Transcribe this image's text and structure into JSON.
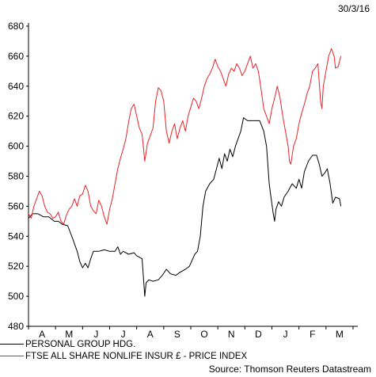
{
  "date_label": "30/3/16",
  "source": "Source: Thomson Reuters Datastream",
  "chart_data": {
    "type": "line",
    "title": "",
    "xlabel": "",
    "ylabel": "",
    "ylim": [
      480,
      680
    ],
    "yticks": [
      480,
      500,
      520,
      540,
      560,
      580,
      600,
      620,
      640,
      660,
      680
    ],
    "x_months": [
      "A",
      "M",
      "J",
      "J",
      "A",
      "S",
      "O",
      "N",
      "D",
      "J",
      "F",
      "M"
    ],
    "grid": false,
    "legend_position": "bottom-left",
    "series": [
      {
        "name": "PERSONAL GROUP HDG.",
        "color": "#000000",
        "points": [
          [
            0.0,
            552
          ],
          [
            0.15,
            555
          ],
          [
            0.35,
            555
          ],
          [
            0.55,
            553
          ],
          [
            0.75,
            553
          ],
          [
            0.95,
            550
          ],
          [
            1.1,
            550
          ],
          [
            1.25,
            548
          ],
          [
            1.45,
            547
          ],
          [
            1.6,
            540
          ],
          [
            1.7,
            535
          ],
          [
            1.8,
            530
          ],
          [
            1.9,
            523
          ],
          [
            2.0,
            519
          ],
          [
            2.1,
            522
          ],
          [
            2.2,
            519
          ],
          [
            2.3,
            525
          ],
          [
            2.4,
            530
          ],
          [
            2.6,
            530
          ],
          [
            2.8,
            531
          ],
          [
            3.0,
            530
          ],
          [
            3.2,
            530
          ],
          [
            3.3,
            533
          ],
          [
            3.4,
            528
          ],
          [
            3.5,
            530
          ],
          [
            3.7,
            528
          ],
          [
            3.9,
            529
          ],
          [
            4.0,
            527
          ],
          [
            4.1,
            526
          ],
          [
            4.2,
            525
          ],
          [
            4.3,
            500
          ],
          [
            4.35,
            509
          ],
          [
            4.45,
            511
          ],
          [
            4.6,
            510
          ],
          [
            4.8,
            511
          ],
          [
            4.95,
            514
          ],
          [
            5.1,
            518
          ],
          [
            5.25,
            515
          ],
          [
            5.45,
            514
          ],
          [
            5.6,
            516
          ],
          [
            5.8,
            518
          ],
          [
            5.95,
            520
          ],
          [
            6.05,
            524
          ],
          [
            6.15,
            528
          ],
          [
            6.25,
            530
          ],
          [
            6.35,
            540
          ],
          [
            6.45,
            560
          ],
          [
            6.55,
            570
          ],
          [
            6.7,
            575
          ],
          [
            6.85,
            578
          ],
          [
            6.95,
            585
          ],
          [
            7.05,
            592
          ],
          [
            7.15,
            585
          ],
          [
            7.25,
            595
          ],
          [
            7.35,
            590
          ],
          [
            7.45,
            598
          ],
          [
            7.55,
            593
          ],
          [
            7.65,
            600
          ],
          [
            7.75,
            605
          ],
          [
            7.85,
            610
          ],
          [
            7.95,
            619
          ],
          [
            8.1,
            617
          ],
          [
            8.3,
            617
          ],
          [
            8.55,
            617
          ],
          [
            8.7,
            610
          ],
          [
            8.8,
            600
          ],
          [
            8.9,
            575
          ],
          [
            8.95,
            568
          ],
          [
            9.05,
            555
          ],
          [
            9.1,
            550
          ],
          [
            9.15,
            558
          ],
          [
            9.25,
            563
          ],
          [
            9.35,
            560
          ],
          [
            9.45,
            566
          ],
          [
            9.6,
            570
          ],
          [
            9.75,
            575
          ],
          [
            9.9,
            572
          ],
          [
            10.0,
            578
          ],
          [
            10.1,
            572
          ],
          [
            10.2,
            583
          ],
          [
            10.35,
            590
          ],
          [
            10.5,
            594
          ],
          [
            10.65,
            594
          ],
          [
            10.75,
            588
          ],
          [
            10.85,
            580
          ],
          [
            10.95,
            582
          ],
          [
            11.05,
            585
          ],
          [
            11.15,
            575
          ],
          [
            11.25,
            562
          ],
          [
            11.35,
            566
          ],
          [
            11.5,
            565
          ],
          [
            11.55,
            560
          ]
        ]
      },
      {
        "name": "FTSE ALL SHARE NONLIFE INSUR £ - PRICE INDEX",
        "color": "#e8232a",
        "points": [
          [
            0.0,
            555
          ],
          [
            0.1,
            552
          ],
          [
            0.2,
            560
          ],
          [
            0.3,
            565
          ],
          [
            0.4,
            570
          ],
          [
            0.5,
            567
          ],
          [
            0.6,
            560
          ],
          [
            0.7,
            556
          ],
          [
            0.8,
            555
          ],
          [
            0.9,
            552
          ],
          [
            1.0,
            553
          ],
          [
            1.1,
            556
          ],
          [
            1.2,
            550
          ],
          [
            1.3,
            548
          ],
          [
            1.4,
            554
          ],
          [
            1.5,
            558
          ],
          [
            1.6,
            560
          ],
          [
            1.7,
            565
          ],
          [
            1.8,
            560
          ],
          [
            1.9,
            567
          ],
          [
            2.0,
            568
          ],
          [
            2.1,
            574
          ],
          [
            2.2,
            570
          ],
          [
            2.3,
            560
          ],
          [
            2.4,
            557
          ],
          [
            2.5,
            555
          ],
          [
            2.6,
            564
          ],
          [
            2.7,
            560
          ],
          [
            2.8,
            553
          ],
          [
            2.9,
            548
          ],
          [
            3.0,
            558
          ],
          [
            3.1,
            565
          ],
          [
            3.2,
            575
          ],
          [
            3.3,
            585
          ],
          [
            3.4,
            592
          ],
          [
            3.5,
            598
          ],
          [
            3.6,
            605
          ],
          [
            3.7,
            616
          ],
          [
            3.8,
            625
          ],
          [
            3.9,
            628
          ],
          [
            4.0,
            620
          ],
          [
            4.1,
            612
          ],
          [
            4.2,
            608
          ],
          [
            4.3,
            590
          ],
          [
            4.4,
            602
          ],
          [
            4.5,
            607
          ],
          [
            4.6,
            612
          ],
          [
            4.7,
            630
          ],
          [
            4.8,
            639
          ],
          [
            4.9,
            637
          ],
          [
            5.0,
            630
          ],
          [
            5.1,
            610
          ],
          [
            5.2,
            602
          ],
          [
            5.3,
            610
          ],
          [
            5.4,
            615
          ],
          [
            5.5,
            605
          ],
          [
            5.6,
            612
          ],
          [
            5.7,
            617
          ],
          [
            5.8,
            610
          ],
          [
            5.9,
            620
          ],
          [
            6.0,
            626
          ],
          [
            6.1,
            632
          ],
          [
            6.2,
            630
          ],
          [
            6.3,
            625
          ],
          [
            6.4,
            632
          ],
          [
            6.5,
            640
          ],
          [
            6.6,
            645
          ],
          [
            6.7,
            648
          ],
          [
            6.8,
            652
          ],
          [
            6.9,
            658
          ],
          [
            7.0,
            653
          ],
          [
            7.1,
            650
          ],
          [
            7.2,
            645
          ],
          [
            7.3,
            640
          ],
          [
            7.4,
            648
          ],
          [
            7.5,
            652
          ],
          [
            7.6,
            650
          ],
          [
            7.7,
            655
          ],
          [
            7.8,
            652
          ],
          [
            7.9,
            647
          ],
          [
            8.0,
            650
          ],
          [
            8.1,
            655
          ],
          [
            8.2,
            660
          ],
          [
            8.3,
            652
          ],
          [
            8.4,
            655
          ],
          [
            8.5,
            650
          ],
          [
            8.6,
            638
          ],
          [
            8.7,
            625
          ],
          [
            8.8,
            620
          ],
          [
            8.9,
            615
          ],
          [
            9.0,
            625
          ],
          [
            9.1,
            632
          ],
          [
            9.2,
            640
          ],
          [
            9.3,
            632
          ],
          [
            9.4,
            620
          ],
          [
            9.5,
            610
          ],
          [
            9.6,
            600
          ],
          [
            9.65,
            590
          ],
          [
            9.7,
            588
          ],
          [
            9.8,
            600
          ],
          [
            9.9,
            605
          ],
          [
            10.0,
            615
          ],
          [
            10.1,
            622
          ],
          [
            10.2,
            628
          ],
          [
            10.3,
            635
          ],
          [
            10.4,
            640
          ],
          [
            10.5,
            650
          ],
          [
            10.6,
            652
          ],
          [
            10.7,
            655
          ],
          [
            10.8,
            630
          ],
          [
            10.85,
            625
          ],
          [
            10.9,
            640
          ],
          [
            11.0,
            650
          ],
          [
            11.1,
            660
          ],
          [
            11.2,
            665
          ],
          [
            11.3,
            660
          ],
          [
            11.35,
            652
          ],
          [
            11.45,
            653
          ],
          [
            11.55,
            660
          ]
        ]
      }
    ]
  }
}
